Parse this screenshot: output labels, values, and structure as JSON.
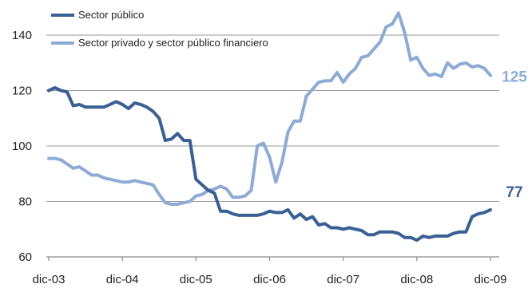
{
  "chart_data": {
    "type": "line",
    "title": "",
    "xlabel": "",
    "ylabel": "",
    "ylim": [
      60,
      150
    ],
    "yticks": [
      60,
      80,
      100,
      120,
      140
    ],
    "xticks": [
      {
        "label": "dic-03",
        "x": 0
      },
      {
        "label": "dic-04",
        "x": 12
      },
      {
        "label": "dic-05",
        "x": 24
      },
      {
        "label": "dic-06",
        "x": 36
      },
      {
        "label": "dic-07",
        "x": 48
      },
      {
        "label": "dic-08",
        "x": 60
      },
      {
        "label": "dic-09",
        "x": 72
      }
    ],
    "grid": true,
    "legend_position": "top-left",
    "series": [
      {
        "name": "Sector público",
        "color": "#3a5f94",
        "end_label": "77",
        "values": [
          [
            0,
            120
          ],
          [
            1,
            121
          ],
          [
            2,
            120
          ],
          [
            3,
            119.5
          ],
          [
            4,
            114.5
          ],
          [
            5,
            115
          ],
          [
            6,
            114
          ],
          [
            7,
            114
          ],
          [
            8,
            114
          ],
          [
            9,
            114
          ],
          [
            10,
            115
          ],
          [
            11,
            116
          ],
          [
            12,
            115
          ],
          [
            13,
            113.5
          ],
          [
            14,
            115.5
          ],
          [
            15,
            115
          ],
          [
            16,
            114
          ],
          [
            17,
            112.5
          ],
          [
            18,
            110
          ],
          [
            19,
            102
          ],
          [
            20,
            102.5
          ],
          [
            21,
            104.5
          ],
          [
            22,
            102
          ],
          [
            23,
            102
          ],
          [
            24,
            88
          ],
          [
            25,
            86
          ],
          [
            26,
            84
          ],
          [
            27,
            83
          ],
          [
            28,
            76.5
          ],
          [
            29,
            76.5
          ],
          [
            30,
            75.5
          ],
          [
            31,
            75
          ],
          [
            32,
            75
          ],
          [
            33,
            75
          ],
          [
            34,
            75
          ],
          [
            35,
            75.5
          ],
          [
            36,
            76.5
          ],
          [
            37,
            76
          ],
          [
            38,
            76
          ],
          [
            39,
            77
          ],
          [
            40,
            74
          ],
          [
            41,
            75.5
          ],
          [
            42,
            73.5
          ],
          [
            43,
            74.5
          ],
          [
            44,
            71.5
          ],
          [
            45,
            72
          ],
          [
            46,
            70.5
          ],
          [
            47,
            70.5
          ],
          [
            48,
            70
          ],
          [
            49,
            70.5
          ],
          [
            50,
            70
          ],
          [
            51,
            69.5
          ],
          [
            52,
            68
          ],
          [
            53,
            68
          ],
          [
            54,
            69
          ],
          [
            55,
            69
          ],
          [
            56,
            69
          ],
          [
            57,
            68.5
          ],
          [
            58,
            67
          ],
          [
            59,
            67
          ],
          [
            60,
            66
          ],
          [
            61,
            67.5
          ],
          [
            62,
            67
          ],
          [
            63,
            67.5
          ],
          [
            64,
            67.5
          ],
          [
            65,
            67.5
          ],
          [
            66,
            68.5
          ],
          [
            67,
            69
          ],
          [
            68,
            69
          ],
          [
            69,
            74.5
          ],
          [
            70,
            75.5
          ],
          [
            71,
            76
          ],
          [
            72,
            77
          ]
        ]
      },
      {
        "name": "Sector privado y sector público financiero",
        "color": "#8eabd6",
        "end_label": "125",
        "values": [
          [
            0,
            95.5
          ],
          [
            1,
            95.5
          ],
          [
            2,
            95
          ],
          [
            3,
            93.5
          ],
          [
            4,
            92
          ],
          [
            5,
            92.5
          ],
          [
            6,
            91
          ],
          [
            7,
            89.5
          ],
          [
            8,
            89.5
          ],
          [
            9,
            88.5
          ],
          [
            10,
            88
          ],
          [
            11,
            87.5
          ],
          [
            12,
            87
          ],
          [
            13,
            87
          ],
          [
            14,
            87.5
          ],
          [
            15,
            87
          ],
          [
            16,
            86.5
          ],
          [
            17,
            86
          ],
          [
            18,
            82.5
          ],
          [
            19,
            79.5
          ],
          [
            20,
            79
          ],
          [
            21,
            79
          ],
          [
            22,
            79.5
          ],
          [
            23,
            80
          ],
          [
            24,
            82
          ],
          [
            25,
            82.5
          ],
          [
            26,
            84
          ],
          [
            27,
            84.5
          ],
          [
            28,
            85.5
          ],
          [
            29,
            84.5
          ],
          [
            30,
            81.5
          ],
          [
            31,
            81.5
          ],
          [
            32,
            82
          ],
          [
            33,
            84
          ],
          [
            34,
            100
          ],
          [
            35,
            101
          ],
          [
            36,
            96
          ],
          [
            37,
            87
          ],
          [
            38,
            94
          ],
          [
            39,
            105
          ],
          [
            40,
            109
          ],
          [
            41,
            109
          ],
          [
            42,
            118
          ],
          [
            43,
            120.5
          ],
          [
            44,
            123
          ],
          [
            45,
            123.5
          ],
          [
            46,
            123.5
          ],
          [
            47,
            126.5
          ],
          [
            48,
            123
          ],
          [
            49,
            126
          ],
          [
            50,
            128
          ],
          [
            51,
            132
          ],
          [
            52,
            132.5
          ],
          [
            53,
            135
          ],
          [
            54,
            137.5
          ],
          [
            55,
            143
          ],
          [
            56,
            144
          ],
          [
            57,
            148
          ],
          [
            58,
            141
          ],
          [
            59,
            131
          ],
          [
            60,
            132
          ],
          [
            61,
            128
          ],
          [
            62,
            125.5
          ],
          [
            63,
            126
          ],
          [
            64,
            125
          ],
          [
            65,
            130
          ],
          [
            66,
            128
          ],
          [
            67,
            129.5
          ],
          [
            68,
            130
          ],
          [
            69,
            128.5
          ],
          [
            70,
            129
          ],
          [
            71,
            128
          ],
          [
            72,
            125.5
          ]
        ]
      }
    ]
  }
}
